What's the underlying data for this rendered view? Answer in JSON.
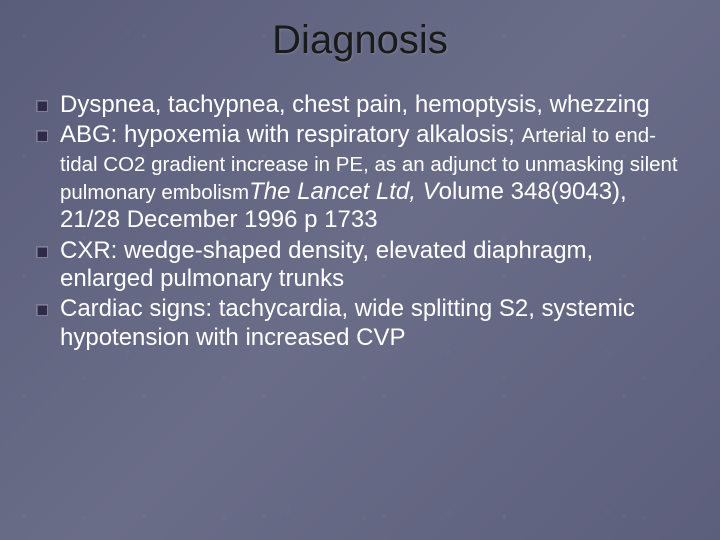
{
  "background_color": "#5f6280",
  "title": {
    "text": "Diagnosis",
    "color": "#1a1a1a",
    "fontsize": 40
  },
  "bullet": {
    "color": "#2f2a4a",
    "size": 10
  },
  "text_color": "#ffffff",
  "body_fontsize": 24,
  "sub_fontsize": 20.5,
  "items": [
    {
      "main": "Dyspnea, tachypnea, chest pain, hemoptysis, whezzing"
    },
    {
      "main": "ABG: hypoxemia with respiratory alkalosis;",
      "sub_plain": "Arterial to end-tidal CO2 gradient increase in PE, as an adjunct to unmasking silent pulmonary embolism",
      "sub_italic": "The Lancet Ltd, V",
      "tail": "olume 348(9043), 21/28 December 1996  p 1733"
    },
    {
      "main": "CXR: wedge-shaped density, elevated diaphragm, enlarged pulmonary trunks"
    },
    {
      "main": "Cardiac signs: tachycardia, wide splitting S2, systemic hypotension with increased CVP"
    }
  ]
}
